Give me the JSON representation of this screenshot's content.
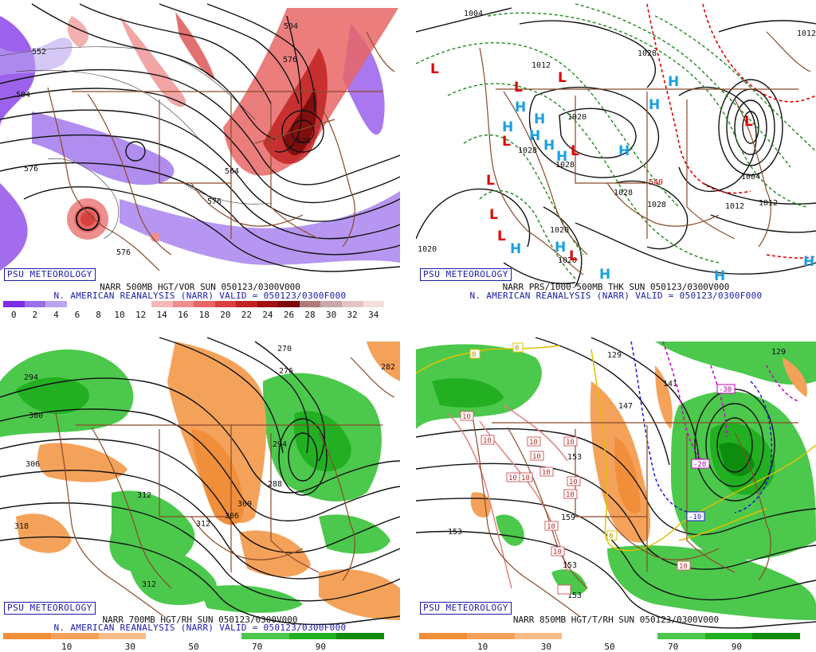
{
  "panels": [
    {
      "id": "500mb",
      "badge": "PSU METEOROLOGY",
      "line1": "NARR 500MB HGT/VOR SUN 050123/0300V000",
      "line2": "N. AMERICAN REANALYSIS (NARR) VALID = 050123/0300F000",
      "colorbar_ticks": [
        "0",
        "2",
        "4",
        "6",
        "8",
        "10",
        "12",
        "14",
        "16",
        "18",
        "20",
        "22",
        "24",
        "26",
        "28",
        "30",
        "32",
        "34"
      ],
      "contour_labels": [
        "504",
        "552",
        "504",
        "576",
        "576",
        "528",
        "564",
        "576",
        "576",
        "552"
      ]
    },
    {
      "id": "sfc",
      "badge": "PSU METEOROLOGY",
      "line1": "NARR PRS/1000-500MB THK SUN 050123/0300V000",
      "line2": "N. AMERICAN REANALYSIS (NARR) VALID = 050123/0300F000",
      "contour_labels": [
        "1004",
        "1012",
        "1012",
        "1028",
        "1020",
        "1028",
        "1028",
        "1028",
        "1028",
        "1020",
        "1020",
        "1020",
        "1004",
        "1012",
        "1012",
        "540"
      ],
      "low_symbol": "L",
      "high_symbol": "H"
    },
    {
      "id": "700mb",
      "badge": "PSU METEOROLOGY",
      "line1": "NARR 700MB HGT/RH SUN 050123/0300V000",
      "line2": "N. AMERICAN REANALYSIS (NARR) VALID = 050123/0300F000",
      "colorbar_ticks": [
        "10",
        "30",
        "50",
        "70",
        "90"
      ],
      "contour_labels": [
        "270",
        "276",
        "282",
        "294",
        "300",
        "306",
        "312",
        "318",
        "312",
        "306",
        "300",
        "288",
        "294",
        "312"
      ]
    },
    {
      "id": "850mb",
      "badge": "PSU METEOROLOGY",
      "line1": "NARR 850MB HGT/T/RH SUN 050123/0300V000",
      "line2": "N. AMERICAN REANALYSIS (NARR) VALID = 050123/0300F000",
      "colorbar_ticks": [
        "10",
        "30",
        "50",
        "70",
        "90"
      ],
      "contour_labels": [
        "129",
        "129",
        "141",
        "147",
        "153",
        "159",
        "153",
        "153",
        "153"
      ],
      "temp_labels": [
        "0",
        "0",
        "10",
        "10",
        "10",
        "10",
        "10",
        "10",
        "10",
        "10",
        "10",
        "10",
        "10",
        "10",
        "-30",
        "-20",
        "-10",
        "0",
        "10"
      ]
    }
  ],
  "colors": {
    "vort_scale": [
      "#7b2ee6",
      "#9a6fe8",
      "#bba4ee",
      "#ffffff",
      "#ffffff",
      "#ffffff",
      "#ffffff",
      "#f6b8b8",
      "#ee8e8e",
      "#e86666",
      "#d94040",
      "#c22222",
      "#a31010",
      "#7a0a0a",
      "#b07a7a",
      "#c8a8a8",
      "#e4c4c4",
      "#f4dede"
    ],
    "rh_scale": [
      "#f08e3a",
      "#f4a25a",
      "#f8bd88",
      "#ffffff",
      "#ffffff",
      "#4cc84c",
      "#22b022",
      "#0e8c0e"
    ],
    "border": "#8b4a2a",
    "badge": "#1a1aa8"
  }
}
